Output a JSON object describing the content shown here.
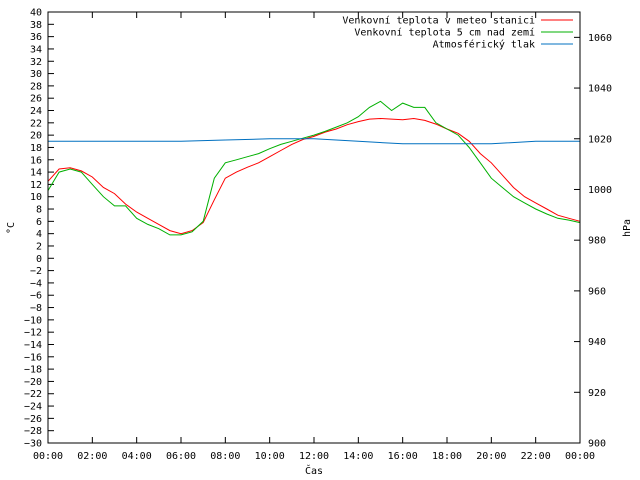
{
  "chart_data": {
    "type": "line",
    "xlabel": "Čas",
    "ylabel_left": "°C",
    "ylabel_right": "hPa",
    "x_ticks": [
      "00:00",
      "02:00",
      "04:00",
      "06:00",
      "08:00",
      "10:00",
      "12:00",
      "14:00",
      "16:00",
      "18:00",
      "20:00",
      "22:00",
      "00:00"
    ],
    "xlim_hours": [
      0,
      24
    ],
    "ylim_left": [
      -30,
      40
    ],
    "ylim_right": [
      900,
      1070
    ],
    "y_ticks_left": [
      40,
      38,
      36,
      34,
      32,
      30,
      28,
      26,
      24,
      22,
      20,
      18,
      16,
      14,
      12,
      10,
      8,
      6,
      4,
      2,
      0,
      -2,
      -4,
      -6,
      -8,
      -10,
      -12,
      -14,
      -16,
      -18,
      -20,
      -22,
      -24,
      -26,
      -28,
      -30
    ],
    "y_ticks_right": [
      1060,
      1040,
      1020,
      1000,
      980,
      960,
      940,
      920,
      900
    ],
    "grid": false,
    "legend_position": "top-right",
    "series": [
      {
        "name": "Venkovní teplota v meteo stanici",
        "color": "#ff0000",
        "axis": "left",
        "x": [
          0,
          0.5,
          1,
          1.5,
          2,
          2.5,
          3,
          3.5,
          4,
          4.5,
          5,
          5.5,
          6,
          6.5,
          7,
          7.5,
          8,
          8.5,
          9,
          9.5,
          10,
          10.5,
          11,
          11.5,
          12,
          12.5,
          13,
          13.5,
          14,
          14.5,
          15,
          15.5,
          16,
          16.5,
          17,
          17.5,
          18,
          18.5,
          19,
          19.5,
          20,
          20.5,
          21,
          21.5,
          22,
          22.5,
          23,
          23.5,
          24
        ],
        "values": [
          12.5,
          14.5,
          14.7,
          14.2,
          13.2,
          11.5,
          10.5,
          8.8,
          7.5,
          6.5,
          5.5,
          4.5,
          4.0,
          4.5,
          5.8,
          9.5,
          13.0,
          14.0,
          14.8,
          15.5,
          16.5,
          17.5,
          18.5,
          19.3,
          19.8,
          20.5,
          21.0,
          21.7,
          22.2,
          22.6,
          22.7,
          22.6,
          22.5,
          22.7,
          22.4,
          21.8,
          21.0,
          20.3,
          19.0,
          17.0,
          15.5,
          13.5,
          11.5,
          10.0,
          9.0,
          8.0,
          7.0,
          6.5,
          6.0
        ]
      },
      {
        "name": "Venkovní teplota 5 cm nad zemí",
        "color": "#00b000",
        "axis": "left",
        "x": [
          0,
          0.5,
          1,
          1.5,
          2,
          2.5,
          3,
          3.5,
          4,
          4.5,
          5,
          5.5,
          6,
          6.5,
          7,
          7.5,
          8,
          8.5,
          9,
          9.5,
          10,
          10.5,
          11,
          11.5,
          12,
          12.5,
          13,
          13.5,
          14,
          14.5,
          15,
          15.5,
          16,
          16.5,
          17,
          17.5,
          18,
          18.5,
          19,
          19.5,
          20,
          20.5,
          21,
          21.5,
          22,
          22.5,
          23,
          23.5,
          24
        ],
        "values": [
          11.0,
          14.0,
          14.5,
          14.0,
          12.0,
          10.0,
          8.5,
          8.5,
          6.5,
          5.5,
          4.8,
          3.8,
          3.8,
          4.3,
          6.0,
          13.0,
          15.5,
          16.0,
          16.5,
          17.0,
          17.8,
          18.5,
          19.0,
          19.5,
          20.0,
          20.6,
          21.3,
          22.0,
          23.0,
          24.5,
          25.5,
          24.0,
          25.2,
          24.5,
          24.5,
          22.0,
          21.0,
          20.0,
          18.0,
          15.5,
          13.0,
          11.5,
          10.0,
          9.0,
          8.0,
          7.2,
          6.5,
          6.2,
          5.8
        ]
      },
      {
        "name": "Atmosférický tlak",
        "color": "#0070c0",
        "axis": "right",
        "x": [
          0,
          2,
          4,
          6,
          8,
          10,
          12,
          14,
          16,
          18,
          20,
          22,
          24
        ],
        "values": [
          1019,
          1019,
          1019,
          1019,
          1019.5,
          1020,
          1020,
          1019,
          1018,
          1018,
          1018,
          1019,
          1019
        ]
      }
    ]
  }
}
